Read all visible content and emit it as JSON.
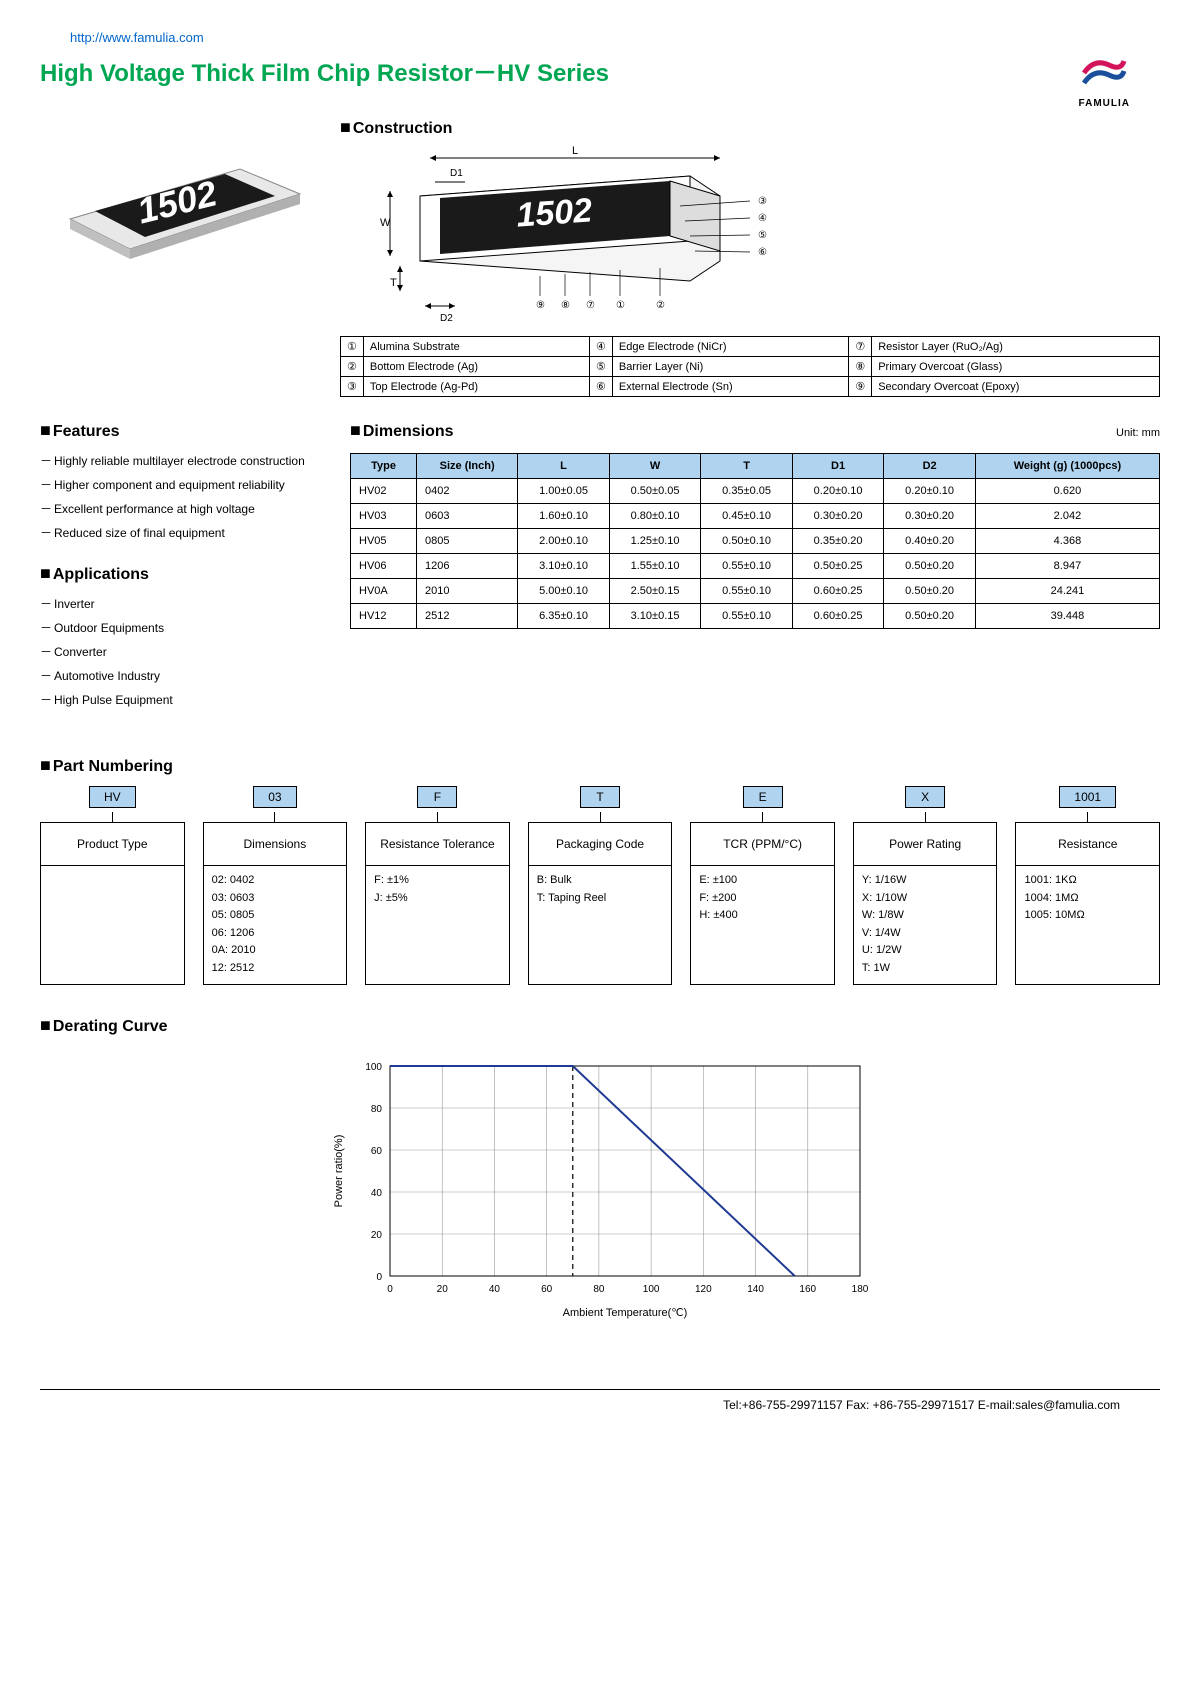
{
  "url": "http://www.famulia.com",
  "title": "High Voltage Thick Film Chip Resistor－HV Series",
  "brand": "FAMULIA",
  "sections": {
    "construction": "Construction",
    "features": "Features",
    "applications": "Applications",
    "dimensions": "Dimensions",
    "unit": "Unit: mm",
    "part_numbering": "Part Numbering",
    "derating": "Derating Curve"
  },
  "resistor_label": "1502",
  "diagram_labels": {
    "L": "L",
    "W": "W",
    "T": "T",
    "D1": "D1",
    "D2": "D2"
  },
  "legend": [
    [
      "①",
      "Alumina Substrate",
      "④",
      "Edge Electrode (NiCr)",
      "⑦",
      "Resistor Layer (RuO₂/Ag)"
    ],
    [
      "②",
      "Bottom Electrode (Ag)",
      "⑤",
      "Barrier Layer (Ni)",
      "⑧",
      "Primary Overcoat (Glass)"
    ],
    [
      "③",
      "Top Electrode (Ag-Pd)",
      "⑥",
      "External Electrode (Sn)",
      "⑨",
      "Secondary Overcoat (Epoxy)"
    ]
  ],
  "features": [
    "Highly reliable multilayer electrode construction",
    "Higher component and equipment reliability",
    "Excellent performance at high voltage",
    "Reduced size of final equipment"
  ],
  "applications": [
    "Inverter",
    "Outdoor Equipments",
    "Converter",
    "Automotive Industry",
    "High Pulse Equipment"
  ],
  "dim_headers": [
    "Type",
    "Size (Inch)",
    "L",
    "W",
    "T",
    "D1",
    "D2",
    "Weight (g) (1000pcs)"
  ],
  "dim_rows": [
    [
      "HV02",
      "0402",
      "1.00±0.05",
      "0.50±0.05",
      "0.35±0.05",
      "0.20±0.10",
      "0.20±0.10",
      "0.620"
    ],
    [
      "HV03",
      "0603",
      "1.60±0.10",
      "0.80±0.10",
      "0.45±0.10",
      "0.30±0.20",
      "0.30±0.20",
      "2.042"
    ],
    [
      "HV05",
      "0805",
      "2.00±0.10",
      "1.25±0.10",
      "0.50±0.10",
      "0.35±0.20",
      "0.40±0.20",
      "4.368"
    ],
    [
      "HV06",
      "1206",
      "3.10±0.10",
      "1.55±0.10",
      "0.55±0.10",
      "0.50±0.25",
      "0.50±0.20",
      "8.947"
    ],
    [
      "HV0A",
      "2010",
      "5.00±0.10",
      "2.50±0.15",
      "0.55±0.10",
      "0.60±0.25",
      "0.50±0.20",
      "24.241"
    ],
    [
      "HV12",
      "2512",
      "6.35±0.10",
      "3.10±0.15",
      "0.55±0.10",
      "0.60±0.25",
      "0.50±0.20",
      "39.448"
    ]
  ],
  "pn": [
    {
      "code": "HV",
      "label": "Product Type",
      "opts": []
    },
    {
      "code": "03",
      "label": "Dimensions",
      "opts": [
        "02: 0402",
        "03: 0603",
        "05: 0805",
        "06: 1206",
        "0A: 2010",
        "12: 2512"
      ]
    },
    {
      "code": "F",
      "label": "Resistance Tolerance",
      "opts": [
        "F: ±1%",
        "J: ±5%"
      ]
    },
    {
      "code": "T",
      "label": "Packaging Code",
      "opts": [
        "B: Bulk",
        "T: Taping Reel"
      ]
    },
    {
      "code": "E",
      "label": "TCR (PPM/°C)",
      "opts": [
        "E: ±100",
        "F: ±200",
        "H: ±400"
      ]
    },
    {
      "code": "X",
      "label": "Power Rating",
      "opts": [
        "Y: 1/16W",
        "X: 1/10W",
        "W: 1/8W",
        "V: 1/4W",
        "U: 1/2W",
        "T: 1W"
      ]
    },
    {
      "code": "1001",
      "label": "Resistance",
      "opts": [
        "1001: 1KΩ",
        "1004: 1MΩ",
        "1005: 10MΩ"
      ]
    }
  ],
  "chart": {
    "type": "line",
    "xlabel": "Ambient Temperature(℃)",
    "ylabel": "Power ratio(%)",
    "xlim": [
      0,
      180
    ],
    "xtick_step": 20,
    "ylim": [
      0,
      100
    ],
    "ytick_step": 20,
    "grid_color": "#999",
    "line_color": "#1f3a93",
    "line_width": 2,
    "points": [
      [
        0,
        100
      ],
      [
        70,
        100
      ],
      [
        155,
        0
      ]
    ],
    "dash_x": 70,
    "label_fontsize": 11,
    "tick_fontsize": 10
  },
  "footer": "Tel:+86-755-29971157  Fax: +86-755-29971517 E-mail:sales@famulia.com"
}
